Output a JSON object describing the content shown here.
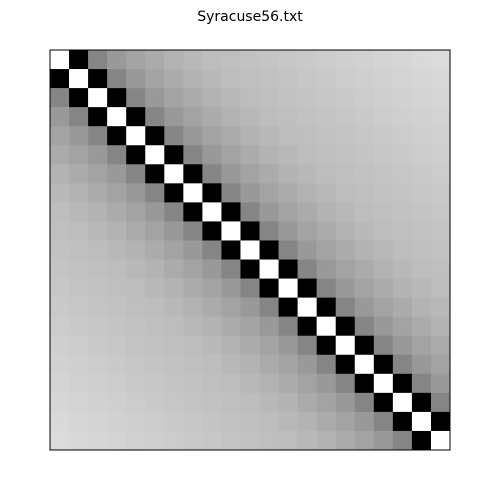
{
  "chart_data": {
    "type": "heatmap",
    "title": "Syracuse56.txt",
    "colormap": "gray",
    "zlim": [
      0,
      1
    ],
    "z": [
      [
        1,
        0,
        0.52,
        0.6,
        0.64,
        0.67,
        0.7,
        0.72,
        0.74,
        0.75,
        0.76,
        0.77,
        0.78,
        0.79,
        0.8,
        0.81,
        0.82,
        0.83,
        0.84,
        0.85,
        0.86
      ],
      [
        0,
        1,
        0,
        0.52,
        0.6,
        0.64,
        0.67,
        0.7,
        0.72,
        0.74,
        0.75,
        0.76,
        0.77,
        0.78,
        0.79,
        0.8,
        0.81,
        0.82,
        0.83,
        0.84,
        0.85
      ],
      [
        0.52,
        0,
        1,
        0,
        0.52,
        0.6,
        0.64,
        0.67,
        0.7,
        0.72,
        0.74,
        0.75,
        0.76,
        0.77,
        0.78,
        0.79,
        0.8,
        0.81,
        0.82,
        0.83,
        0.84
      ],
      [
        0.6,
        0.52,
        0,
        1,
        0,
        0.52,
        0.6,
        0.64,
        0.67,
        0.7,
        0.72,
        0.74,
        0.75,
        0.76,
        0.77,
        0.78,
        0.79,
        0.8,
        0.81,
        0.82,
        0.83
      ],
      [
        0.64,
        0.6,
        0.52,
        0,
        1,
        0,
        0.52,
        0.6,
        0.64,
        0.67,
        0.7,
        0.72,
        0.74,
        0.75,
        0.76,
        0.77,
        0.78,
        0.79,
        0.8,
        0.81,
        0.82
      ],
      [
        0.67,
        0.64,
        0.6,
        0.52,
        0,
        1,
        0,
        0.52,
        0.6,
        0.64,
        0.67,
        0.7,
        0.72,
        0.74,
        0.75,
        0.76,
        0.77,
        0.78,
        0.79,
        0.8,
        0.81
      ],
      [
        0.7,
        0.67,
        0.64,
        0.6,
        0.52,
        0,
        1,
        0,
        0.52,
        0.6,
        0.64,
        0.67,
        0.7,
        0.72,
        0.74,
        0.75,
        0.76,
        0.77,
        0.78,
        0.79,
        0.8
      ],
      [
        0.72,
        0.7,
        0.67,
        0.64,
        0.6,
        0.52,
        0,
        1,
        0,
        0.52,
        0.6,
        0.64,
        0.67,
        0.7,
        0.72,
        0.74,
        0.75,
        0.76,
        0.77,
        0.78,
        0.79
      ],
      [
        0.74,
        0.72,
        0.7,
        0.67,
        0.64,
        0.6,
        0.52,
        0,
        1,
        0,
        0.52,
        0.6,
        0.64,
        0.67,
        0.7,
        0.72,
        0.74,
        0.75,
        0.76,
        0.77,
        0.78
      ],
      [
        0.75,
        0.74,
        0.72,
        0.7,
        0.67,
        0.64,
        0.6,
        0.52,
        0,
        1,
        0,
        0.52,
        0.6,
        0.64,
        0.67,
        0.7,
        0.72,
        0.74,
        0.75,
        0.76,
        0.77
      ],
      [
        0.76,
        0.75,
        0.74,
        0.72,
        0.7,
        0.67,
        0.64,
        0.6,
        0.52,
        0,
        1,
        0,
        0.52,
        0.6,
        0.64,
        0.67,
        0.7,
        0.72,
        0.74,
        0.75,
        0.76
      ],
      [
        0.77,
        0.76,
        0.75,
        0.74,
        0.72,
        0.7,
        0.67,
        0.64,
        0.6,
        0.52,
        0,
        1,
        0,
        0.52,
        0.6,
        0.64,
        0.67,
        0.7,
        0.72,
        0.74,
        0.75
      ],
      [
        0.78,
        0.77,
        0.76,
        0.75,
        0.74,
        0.72,
        0.7,
        0.67,
        0.64,
        0.6,
        0.52,
        0,
        1,
        0,
        0.52,
        0.6,
        0.64,
        0.67,
        0.7,
        0.72,
        0.74
      ],
      [
        0.79,
        0.78,
        0.77,
        0.76,
        0.75,
        0.74,
        0.72,
        0.7,
        0.67,
        0.64,
        0.6,
        0.52,
        0,
        1,
        0,
        0.52,
        0.6,
        0.64,
        0.67,
        0.7,
        0.72
      ],
      [
        0.8,
        0.79,
        0.78,
        0.77,
        0.76,
        0.75,
        0.74,
        0.72,
        0.7,
        0.67,
        0.64,
        0.6,
        0.52,
        0,
        1,
        0,
        0.52,
        0.6,
        0.64,
        0.67,
        0.7
      ],
      [
        0.81,
        0.8,
        0.79,
        0.78,
        0.77,
        0.76,
        0.75,
        0.74,
        0.72,
        0.7,
        0.67,
        0.64,
        0.6,
        0.52,
        0,
        1,
        0,
        0.52,
        0.6,
        0.64,
        0.67
      ],
      [
        0.82,
        0.81,
        0.8,
        0.79,
        0.78,
        0.77,
        0.76,
        0.75,
        0.74,
        0.72,
        0.7,
        0.67,
        0.64,
        0.6,
        0.52,
        0,
        1,
        0,
        0.52,
        0.6,
        0.64
      ],
      [
        0.83,
        0.82,
        0.81,
        0.8,
        0.79,
        0.78,
        0.77,
        0.76,
        0.75,
        0.74,
        0.72,
        0.7,
        0.67,
        0.64,
        0.6,
        0.52,
        0,
        1,
        0,
        0.52,
        0.6
      ],
      [
        0.84,
        0.83,
        0.82,
        0.81,
        0.8,
        0.79,
        0.78,
        0.77,
        0.76,
        0.75,
        0.74,
        0.72,
        0.7,
        0.67,
        0.64,
        0.6,
        0.52,
        0,
        1,
        0,
        0.52
      ],
      [
        0.85,
        0.84,
        0.83,
        0.82,
        0.81,
        0.8,
        0.79,
        0.78,
        0.77,
        0.76,
        0.75,
        0.74,
        0.72,
        0.7,
        0.67,
        0.64,
        0.6,
        0.52,
        0,
        1,
        0
      ],
      [
        0.86,
        0.85,
        0.84,
        0.83,
        0.82,
        0.81,
        0.8,
        0.79,
        0.78,
        0.77,
        0.76,
        0.75,
        0.74,
        0.72,
        0.7,
        0.67,
        0.64,
        0.6,
        0.52,
        0,
        1
      ]
    ]
  }
}
